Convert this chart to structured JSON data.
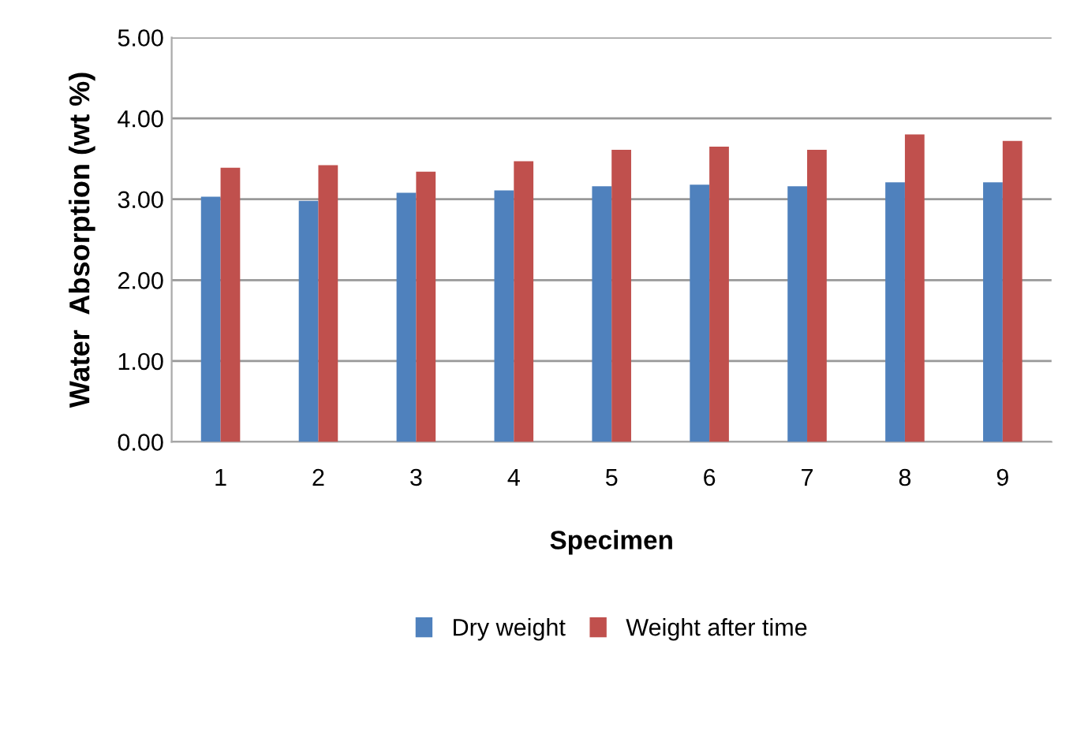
{
  "chart_data": {
    "type": "bar",
    "xlabel": "Specimen",
    "ylabel": "Water  Absorption (wt %)",
    "categories": [
      "1",
      "2",
      "3",
      "4",
      "5",
      "6",
      "7",
      "8",
      "9"
    ],
    "series": [
      {
        "name": "Dry weight",
        "color": "#4f81bd",
        "values": [
          3.03,
          2.98,
          3.08,
          3.11,
          3.16,
          3.18,
          3.16,
          3.21,
          3.21
        ]
      },
      {
        "name": "Weight after time",
        "color": "#c0504d",
        "values": [
          3.39,
          3.42,
          3.34,
          3.47,
          3.61,
          3.65,
          3.61,
          3.8,
          3.72
        ]
      }
    ],
    "ylim": [
      0,
      5
    ],
    "yticks": [
      {
        "value": 0,
        "label": "0.00"
      },
      {
        "value": 1,
        "label": "1.00"
      },
      {
        "value": 2,
        "label": "2.00"
      },
      {
        "value": 3,
        "label": "3.00"
      },
      {
        "value": 4,
        "label": "4.00"
      },
      {
        "value": 5,
        "label": "5.00"
      }
    ],
    "grid": "y",
    "legend": "bottom"
  }
}
